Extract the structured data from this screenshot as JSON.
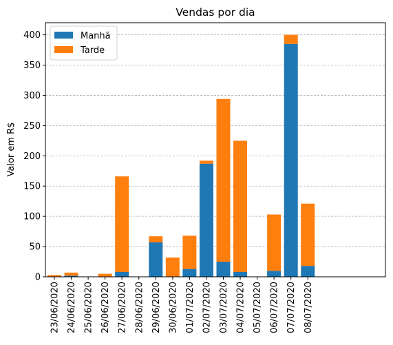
{
  "chart_data": {
    "type": "bar",
    "stacked": true,
    "title": "Vendas por dia",
    "xlabel": "",
    "ylabel": "Valor em R$",
    "ylim": [
      0,
      420
    ],
    "yticks": [
      0,
      50,
      100,
      150,
      200,
      250,
      300,
      350,
      400
    ],
    "grid": "y, dashed",
    "legend_position": "top-left",
    "categories": [
      "23/06/2020",
      "24/06/2020",
      "25/06/2020",
      "26/06/2020",
      "27/06/2020",
      "28/06/2020",
      "29/06/2020",
      "30/06/2020",
      "01/07/2020",
      "02/07/2020",
      "03/07/2020",
      "04/07/2020",
      "05/07/2020",
      "06/07/2020",
      "07/07/2020",
      "08/07/2020"
    ],
    "series": [
      {
        "name": "Manhã",
        "color": "#1f77b4",
        "values": [
          0,
          2,
          0,
          0,
          8,
          0,
          57,
          0,
          13,
          187,
          25,
          8,
          0,
          10,
          385,
          18
        ]
      },
      {
        "name": "Tarde",
        "color": "#ff7f0e",
        "values": [
          3,
          5,
          0,
          5,
          158,
          0,
          10,
          32,
          55,
          5,
          269,
          217,
          0,
          93,
          15,
          103
        ]
      }
    ]
  }
}
